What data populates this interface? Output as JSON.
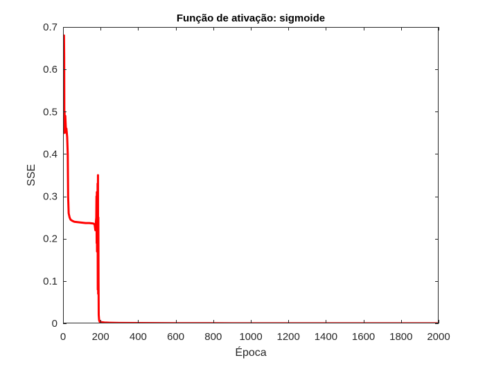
{
  "chart_data": {
    "type": "line",
    "title": "Função de ativação: sigmoide",
    "xlabel": "Época",
    "ylabel": "SSE",
    "xlim": [
      0,
      2000
    ],
    "ylim": [
      0,
      0.7
    ],
    "xticks": [
      0,
      200,
      400,
      600,
      800,
      1000,
      1200,
      1400,
      1600,
      1800,
      2000
    ],
    "yticks": [
      0,
      0.1,
      0.2,
      0.3,
      0.4,
      0.5,
      0.6,
      0.7
    ],
    "xtick_labels": [
      "0",
      "200",
      "400",
      "600",
      "800",
      "1000",
      "1200",
      "1400",
      "1600",
      "1800",
      "2000"
    ],
    "ytick_labels": [
      "0",
      "0.1",
      "0.2",
      "0.3",
      "0.4",
      "0.5",
      "0.6",
      "0.7"
    ],
    "grid": false,
    "box": true,
    "series": [
      {
        "color": "#ff0000",
        "x": [
          1,
          2,
          3,
          4,
          5,
          6,
          7,
          8,
          9,
          10,
          11,
          12,
          13,
          15,
          18,
          20,
          22,
          25,
          27,
          30,
          35,
          40,
          50,
          60,
          80,
          100,
          120,
          140,
          160,
          168,
          172,
          175,
          177,
          178,
          179,
          180,
          181,
          182,
          183,
          184,
          185,
          186,
          187,
          188,
          189,
          190,
          192,
          195,
          200,
          220,
          250,
          300,
          400,
          500,
          600,
          700,
          800,
          900,
          1000,
          1100,
          1200,
          1300,
          1400,
          1500,
          1600,
          1700,
          1800,
          1900,
          2000
        ],
        "y": [
          0.46,
          0.53,
          0.68,
          0.45,
          0.68,
          0.63,
          0.46,
          0.5,
          0.45,
          0.49,
          0.47,
          0.49,
          0.48,
          0.46,
          0.46,
          0.45,
          0.44,
          0.4,
          0.3,
          0.26,
          0.25,
          0.245,
          0.242,
          0.24,
          0.239,
          0.238,
          0.237,
          0.237,
          0.236,
          0.234,
          0.22,
          0.24,
          0.25,
          0.3,
          0.19,
          0.31,
          0.17,
          0.3,
          0.2,
          0.33,
          0.08,
          0.35,
          0.07,
          0.25,
          0.1,
          0.02,
          0.008,
          0.004,
          0.003,
          0.002,
          0.0015,
          0.001,
          0.0008,
          0.0006,
          0.0005,
          0.0004,
          0.0004,
          0.0003,
          0.0003,
          0.0003,
          0.0003,
          0.0002,
          0.0002,
          0.0002,
          0.0002,
          0.0002,
          0.0002,
          0.0002,
          0.0002
        ]
      }
    ]
  }
}
